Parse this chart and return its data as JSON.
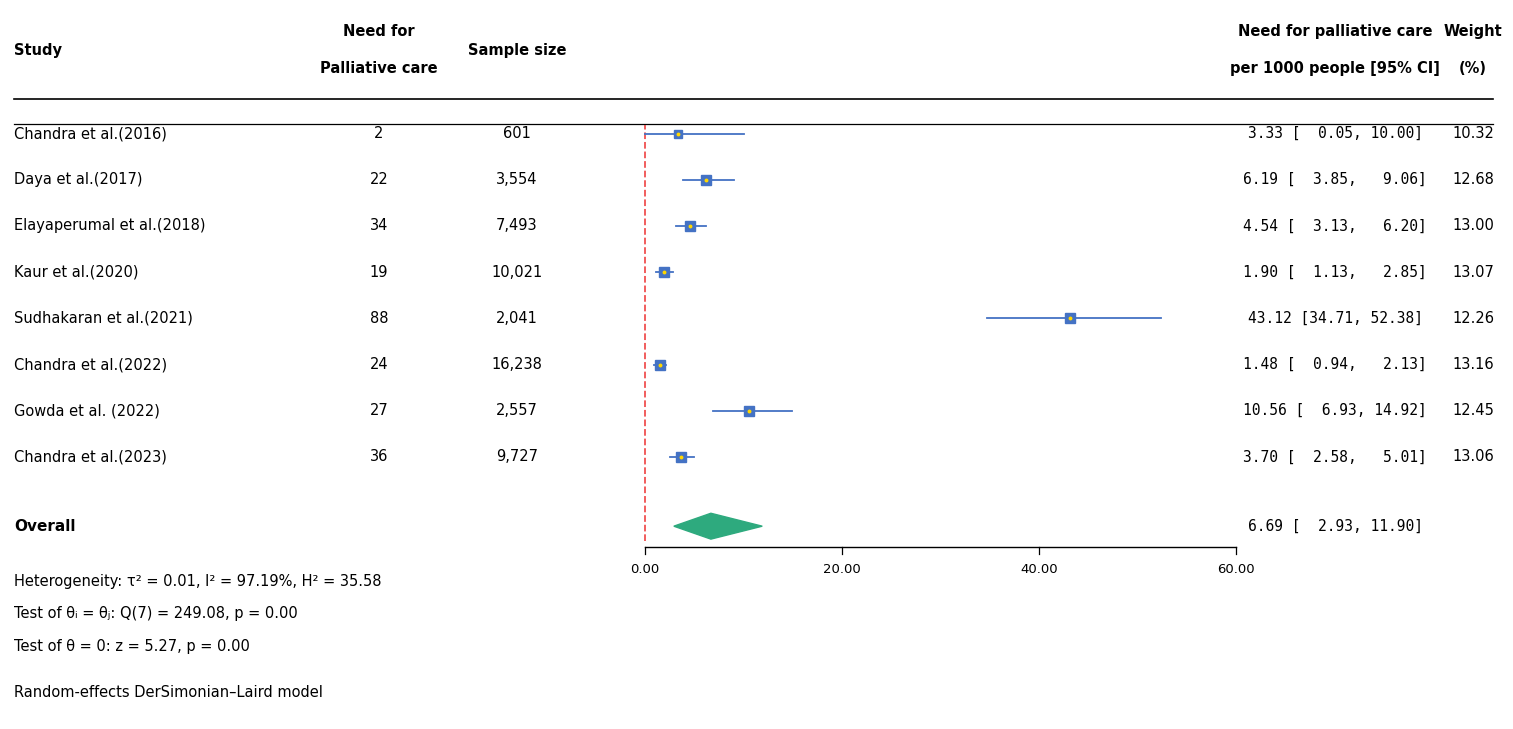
{
  "studies": [
    "Chandra et al.(2016)",
    "Daya et al.(2017)",
    "Elayaperumal et al.(2018)",
    "Kaur et al.(2020)",
    "Sudhakaran et al.(2021)",
    "Chandra et al.(2022)",
    "Gowda et al. (2022)",
    "Chandra et al.(2023)"
  ],
  "need_for_pc": [
    "2",
    "22",
    "34",
    "19",
    "88",
    "24",
    "27",
    "36"
  ],
  "sample_sizes": [
    "601",
    "3,554",
    "7,493",
    "10,021",
    "2,041",
    "16,238",
    "2,557",
    "9,727"
  ],
  "estimates": [
    3.33,
    6.19,
    4.54,
    1.9,
    43.12,
    1.48,
    10.56,
    3.7
  ],
  "ci_lower": [
    0.05,
    3.85,
    3.13,
    1.13,
    34.71,
    0.94,
    6.93,
    2.58
  ],
  "ci_upper": [
    10.0,
    9.06,
    6.2,
    2.85,
    52.38,
    2.13,
    14.92,
    5.01
  ],
  "weights": [
    10.32,
    12.68,
    13.0,
    13.07,
    12.26,
    13.16,
    12.45,
    13.06
  ],
  "ci_texts": [
    "3.33 [  0.05, 10.00]",
    "6.19 [  3.85,   9.06]",
    "4.54 [  3.13,   6.20]",
    "1.90 [  1.13,   2.85]",
    "43.12 [34.71, 52.38]",
    "1.48 [  0.94,   2.13]",
    "10.56 [  6.93, 14.92]",
    "3.70 [  2.58,   5.01]"
  ],
  "weight_texts": [
    "10.32",
    "12.68",
    "13.00",
    "13.07",
    "12.26",
    "13.16",
    "12.45",
    "13.06"
  ],
  "overall_estimate": 6.69,
  "overall_ci_lower": 2.93,
  "overall_ci_upper": 11.9,
  "overall_ci_text": "6.69 [  2.93, 11.90]",
  "xticks": [
    0.0,
    20.0,
    40.0,
    60.0
  ],
  "xticklabels": [
    "0.00",
    "20.00",
    "40.00",
    "60.00"
  ],
  "col1_header": "Study",
  "col2_header_line1": "Need for",
  "col2_header_line2": "Palliative care",
  "col3_header": "Sample size",
  "col4_header_line1": "Need for palliative care",
  "col4_header_line2": "per 1000 people [95% CI]",
  "col5_header_line1": "Weight",
  "col5_header_line2": "(%)",
  "heterogeneity_text": "Heterogeneity: τ² = 0.01, I² = 97.19%, H² = 35.58",
  "test_theta_text": "Test of θᵢ = θⱼ: Q(7) = 249.08, p = 0.00",
  "test_zero_text": "Test of θ = 0: z = 5.27, p = 0.00",
  "footer_text": "Random-effects DerSimonian–Laird model",
  "marker_color": "#4472C4",
  "diamond_color": "#2EAA7E",
  "ref_line_color": "#EE3333",
  "ci_line_color": "#4472C4",
  "background_color": "#FFFFFF"
}
